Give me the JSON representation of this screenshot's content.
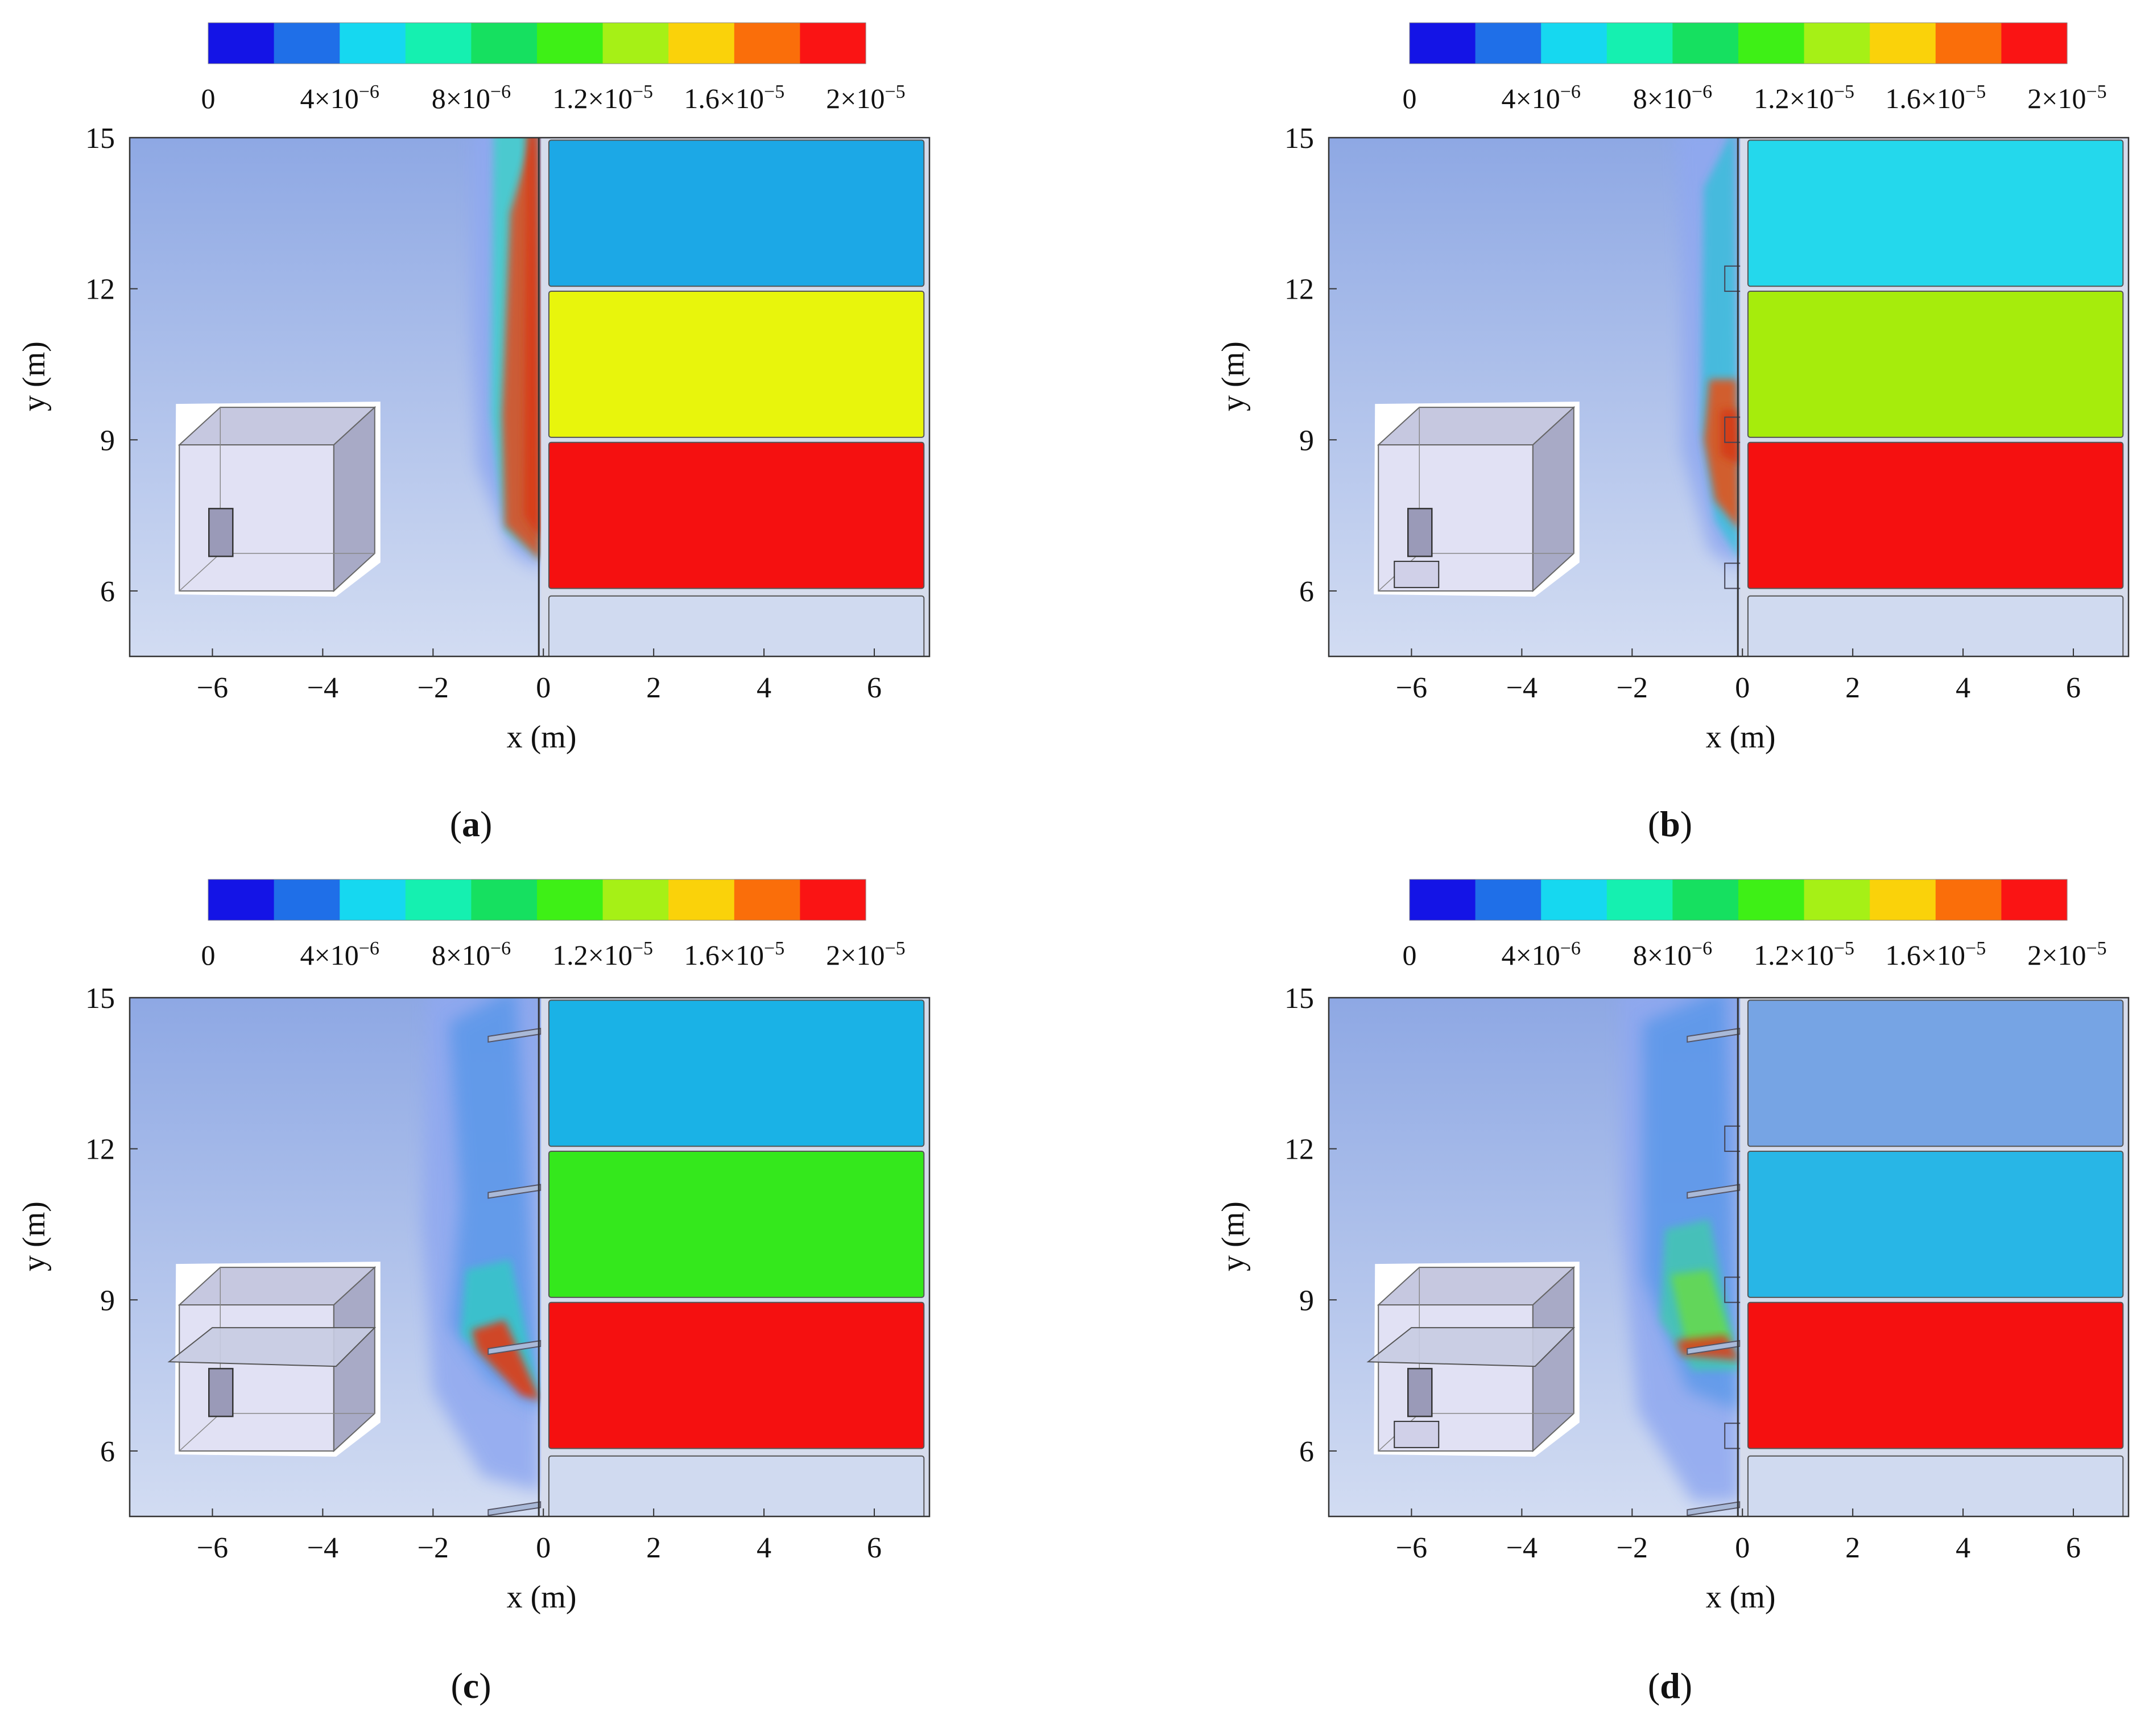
{
  "colorbar": {
    "colors": [
      "#1414e6",
      "#1f6fe8",
      "#16d8f0",
      "#15f0b0",
      "#16e060",
      "#3ef016",
      "#a6f016",
      "#fad20a",
      "#fa6e0a",
      "#fa1414"
    ],
    "tick_labels": [
      "0",
      "4×10",
      "8×10",
      "1.2×10",
      "1.6×10",
      "2×10"
    ],
    "tick_exponents": [
      "",
      "−6",
      "−6",
      "−5",
      "−5",
      "−5"
    ]
  },
  "axes": {
    "x_label": "x (m)",
    "y_label": "y (m)",
    "x_ticks": [
      "−6",
      "−4",
      "−2",
      "0",
      "2",
      "4",
      "6"
    ],
    "y_ticks": [
      "6",
      "9",
      "12",
      "15"
    ]
  },
  "chart_data": [
    {
      "type": "heatmap",
      "caption": "(a)",
      "xlim": [
        -7.5,
        7
      ],
      "ylim": [
        4.7,
        15
      ],
      "x_tick_values": [
        -6,
        -4,
        -2,
        0,
        2,
        4,
        6
      ],
      "y_tick_values": [
        6,
        9,
        12,
        15
      ],
      "colorbar_range": [
        0,
        2e-05
      ],
      "room_concentration_by_floor": [
        {
          "floor_y_range": [
            12,
            15
          ],
          "value": 7e-06,
          "color": "#1ca8e6"
        },
        {
          "floor_y_range": [
            9,
            12
          ],
          "value": 1.6e-05,
          "color": "#e8f50c"
        },
        {
          "floor_y_range": [
            6,
            9
          ],
          "value": 2e-05,
          "color": "#f51010"
        }
      ],
      "variant": "a"
    },
    {
      "type": "heatmap",
      "caption": "(b)",
      "xlim": [
        -7.5,
        7
      ],
      "ylim": [
        4.7,
        15
      ],
      "x_tick_values": [
        -6,
        -4,
        -2,
        0,
        2,
        4,
        6
      ],
      "y_tick_values": [
        6,
        9,
        12,
        15
      ],
      "colorbar_range": [
        0,
        2e-05
      ],
      "room_concentration_by_floor": [
        {
          "floor_y_range": [
            12,
            15
          ],
          "value": 6e-06,
          "color": "#24d8ec"
        },
        {
          "floor_y_range": [
            9,
            12
          ],
          "value": 1.4e-05,
          "color": "#a6ec0c"
        },
        {
          "floor_y_range": [
            6,
            9
          ],
          "value": 2e-05,
          "color": "#f51010"
        }
      ],
      "variant": "b"
    },
    {
      "type": "heatmap",
      "caption": "(c)",
      "xlim": [
        -7.5,
        7
      ],
      "ylim": [
        4.7,
        15
      ],
      "x_tick_values": [
        -6,
        -4,
        -2,
        0,
        2,
        4,
        6
      ],
      "y_tick_values": [
        6,
        9,
        12,
        15
      ],
      "colorbar_range": [
        0,
        2e-05
      ],
      "room_concentration_by_floor": [
        {
          "floor_y_range": [
            12,
            15
          ],
          "value": 5e-06,
          "color": "#1ab2e6"
        },
        {
          "floor_y_range": [
            9,
            12
          ],
          "value": 1.1e-05,
          "color": "#34e81c"
        },
        {
          "floor_y_range": [
            6,
            9
          ],
          "value": 2e-05,
          "color": "#f51010"
        }
      ],
      "variant": "c"
    },
    {
      "type": "heatmap",
      "caption": "(d)",
      "xlim": [
        -7.5,
        7
      ],
      "ylim": [
        4.7,
        15
      ],
      "x_tick_values": [
        -6,
        -4,
        -2,
        0,
        2,
        4,
        6
      ],
      "y_tick_values": [
        6,
        9,
        12,
        15
      ],
      "colorbar_range": [
        0,
        2e-05
      ],
      "room_concentration_by_floor": [
        {
          "floor_y_range": [
            12,
            15
          ],
          "value": 3e-06,
          "color": "#76a4e4"
        },
        {
          "floor_y_range": [
            9,
            12
          ],
          "value": 5e-06,
          "color": "#28b6e6"
        },
        {
          "floor_y_range": [
            6,
            9
          ],
          "value": 2e-05,
          "color": "#f51010"
        }
      ],
      "variant": "d"
    }
  ]
}
